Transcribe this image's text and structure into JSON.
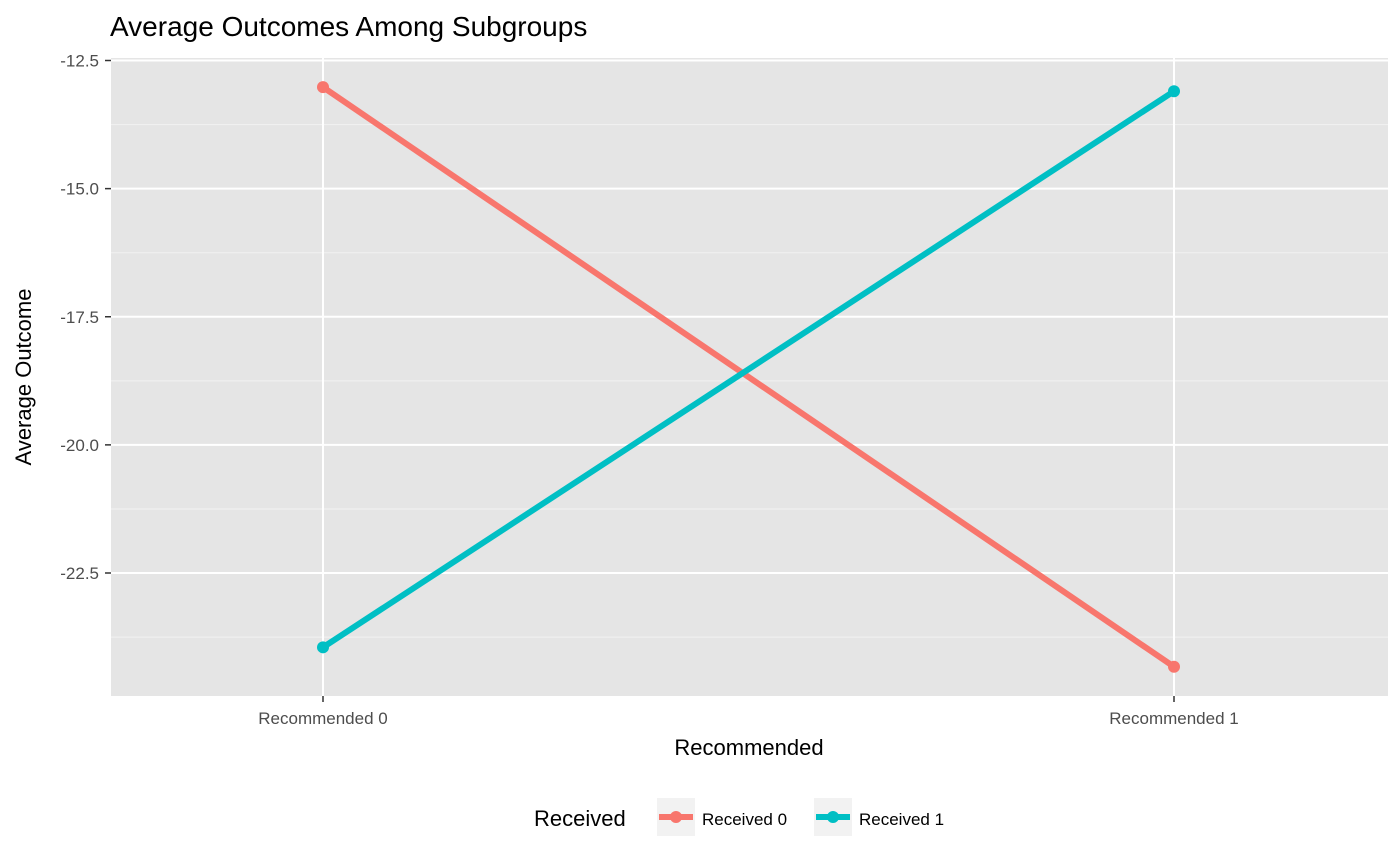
{
  "chart_data": {
    "type": "line",
    "title": "Average Outcomes Among Subgroups",
    "xlabel": "Recommended",
    "ylabel": "Average Outcome",
    "categories": [
      "Recommended 0",
      "Recommended 1"
    ],
    "ylim": [
      -25.0,
      -12.4
    ],
    "yticks": [
      -12.5,
      -15.0,
      -17.5,
      -20.0,
      -22.5
    ],
    "ytick_labels": [
      "-12.5",
      "-15.0",
      "-17.5",
      "-20.0",
      "-22.5"
    ],
    "grid": true,
    "legend": {
      "title": "Received",
      "position": "bottom"
    },
    "series": [
      {
        "name": "Received 0",
        "color": "#F8766D",
        "values": [
          -13.02,
          -24.33
        ]
      },
      {
        "name": "Received 1",
        "color": "#00BFC4",
        "values": [
          -23.95,
          -13.1
        ]
      }
    ]
  }
}
